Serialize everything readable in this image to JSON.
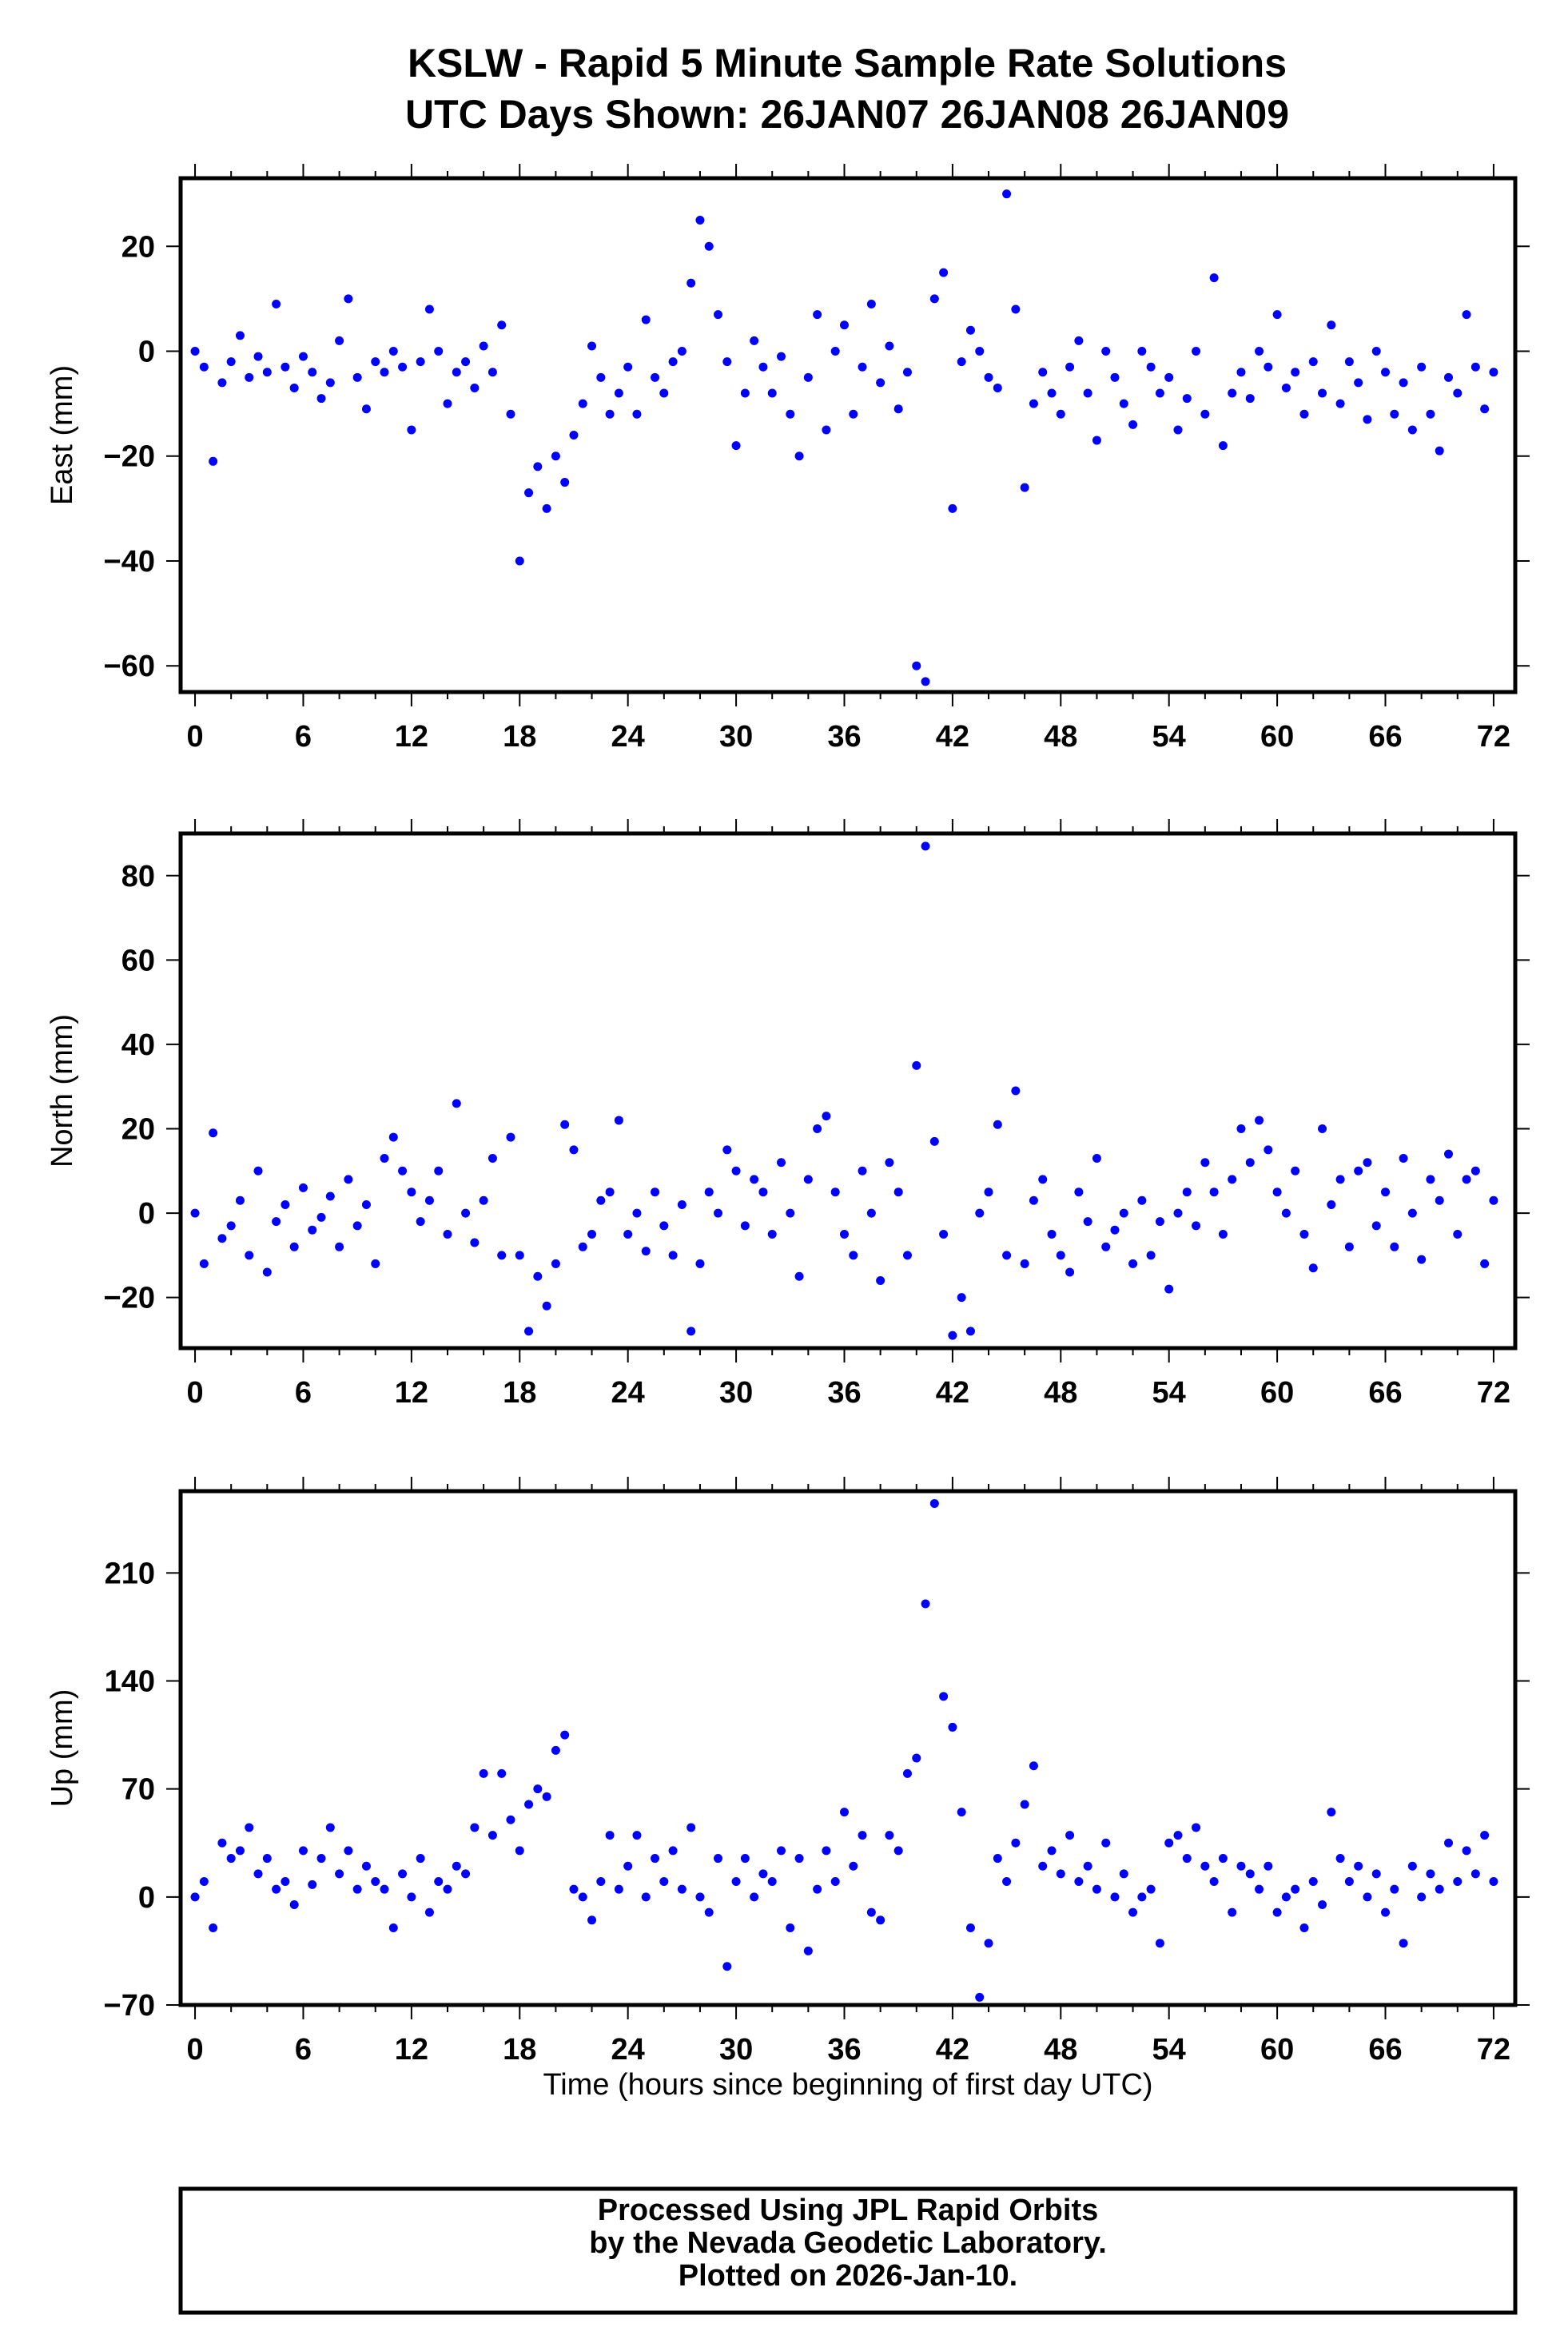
{
  "title": {
    "line1": "KSLW - Rapid 5 Minute Sample Rate Solutions",
    "line2": "UTC Days Shown:  26JAN07 26JAN08 26JAN09"
  },
  "footer": {
    "line1": "Processed Using JPL Rapid Orbits",
    "line2": "by the Nevada Geodetic Laboratory.",
    "line3": "Plotted on 2026-Jan-10."
  },
  "colors": {
    "points": "#0000ff",
    "axes": "#000000"
  },
  "chart_data": [
    {
      "type": "scatter",
      "name": "east",
      "ylabel": "East (mm)",
      "xlabel": "",
      "xlim": [
        -0.8,
        73.2
      ],
      "ylim": [
        -65,
        33
      ],
      "xticks": [
        0,
        6,
        12,
        18,
        24,
        30,
        36,
        42,
        48,
        54,
        60,
        66,
        72
      ],
      "yticks": [
        -60,
        -40,
        -20,
        0,
        20
      ],
      "ytick_labels": [
        "−60",
        "−40",
        "−20",
        "0",
        "20"
      ],
      "x_start": 0,
      "x_step": 0.5,
      "values": [
        0,
        -3,
        -21,
        -6,
        -2,
        3,
        -5,
        -1,
        -4,
        9,
        -3,
        -7,
        -1,
        -4,
        -9,
        -6,
        2,
        10,
        -5,
        -11,
        -2,
        -4,
        0,
        -3,
        -15,
        -2,
        8,
        0,
        -10,
        -4,
        -2,
        -7,
        1,
        -4,
        5,
        -12,
        -40,
        -27,
        -22,
        -30,
        -20,
        -25,
        -16,
        -10,
        1,
        -5,
        -12,
        -8,
        -3,
        -12,
        6,
        -5,
        -8,
        -2,
        0,
        13,
        25,
        20,
        7,
        -2,
        -18,
        -8,
        2,
        -3,
        -8,
        -1,
        -12,
        -20,
        -5,
        7,
        -15,
        0,
        5,
        -12,
        -3,
        9,
        -6,
        1,
        -11,
        -4,
        -60,
        -63,
        10,
        15,
        -30,
        -2,
        4,
        0,
        -5,
        -7,
        30,
        8,
        -26,
        -10,
        -4,
        -8,
        -12,
        -3,
        2,
        -8,
        -17,
        0,
        -5,
        -10,
        -14,
        0,
        -3,
        -8,
        -5,
        -15,
        -9,
        0,
        -12,
        14,
        -18,
        -8,
        -4,
        -9,
        0,
        -3,
        7,
        -7,
        -4,
        -12,
        -2,
        -8,
        5,
        -10,
        -2,
        -6,
        -13,
        0,
        -4,
        -12,
        -6,
        -15,
        -3,
        -12,
        -19,
        -5,
        -8,
        7,
        -3,
        -11,
        -4
      ]
    },
    {
      "type": "scatter",
      "name": "north",
      "ylabel": "North (mm)",
      "xlabel": "",
      "xlim": [
        -0.8,
        73.2
      ],
      "ylim": [
        -32,
        90
      ],
      "xticks": [
        0,
        6,
        12,
        18,
        24,
        30,
        36,
        42,
        48,
        54,
        60,
        66,
        72
      ],
      "yticks": [
        -20,
        0,
        20,
        40,
        60,
        80
      ],
      "ytick_labels": [
        "−20",
        "0",
        "20",
        "40",
        "60",
        "80"
      ],
      "x_start": 0,
      "x_step": 0.5,
      "values": [
        0,
        -12,
        19,
        -6,
        -3,
        3,
        -10,
        10,
        -14,
        -2,
        2,
        -8,
        6,
        -4,
        -1,
        4,
        -8,
        8,
        -3,
        2,
        -12,
        13,
        18,
        10,
        5,
        -2,
        3,
        10,
        -5,
        26,
        0,
        -7,
        3,
        13,
        -10,
        18,
        -10,
        -28,
        -15,
        -22,
        -12,
        21,
        15,
        -8,
        -5,
        3,
        5,
        22,
        -5,
        0,
        -9,
        5,
        -3,
        -10,
        2,
        -28,
        -12,
        5,
        0,
        15,
        10,
        -3,
        8,
        5,
        -5,
        12,
        0,
        -15,
        8,
        20,
        23,
        5,
        -5,
        -10,
        10,
        0,
        -16,
        12,
        5,
        -10,
        35,
        87,
        17,
        -5,
        -29,
        -20,
        -28,
        0,
        5,
        21,
        -10,
        29,
        -12,
        3,
        8,
        -5,
        -10,
        -14,
        5,
        -2,
        13,
        -8,
        -4,
        0,
        -12,
        3,
        -10,
        -2,
        -18,
        0,
        5,
        -3,
        12,
        5,
        -5,
        8,
        20,
        12,
        22,
        15,
        5,
        0,
        10,
        -5,
        -13,
        20,
        2,
        8,
        -8,
        10,
        12,
        -3,
        5,
        -8,
        13,
        0,
        -11,
        8,
        3,
        14,
        -5,
        8,
        10,
        -12,
        3
      ]
    },
    {
      "type": "scatter",
      "name": "up",
      "ylabel": "Up (mm)",
      "xlabel": "Time (hours since beginning of first day UTC)",
      "xlim": [
        -0.8,
        73.2
      ],
      "ylim": [
        -70,
        263
      ],
      "xticks": [
        0,
        6,
        12,
        18,
        24,
        30,
        36,
        42,
        48,
        54,
        60,
        66,
        72
      ],
      "yticks": [
        -70,
        0,
        70,
        140,
        210
      ],
      "ytick_labels": [
        "−70",
        "0",
        "70",
        "140",
        "210"
      ],
      "x_start": 0,
      "x_step": 0.5,
      "values": [
        0,
        10,
        -20,
        35,
        25,
        30,
        45,
        15,
        25,
        5,
        10,
        -5,
        30,
        8,
        25,
        45,
        15,
        30,
        5,
        20,
        10,
        5,
        -20,
        15,
        0,
        25,
        -10,
        10,
        5,
        20,
        15,
        45,
        80,
        40,
        80,
        50,
        30,
        60,
        70,
        65,
        95,
        105,
        5,
        0,
        -15,
        10,
        40,
        5,
        20,
        40,
        0,
        25,
        10,
        30,
        5,
        45,
        0,
        -10,
        25,
        -45,
        10,
        25,
        0,
        15,
        10,
        30,
        -20,
        25,
        -35,
        5,
        30,
        10,
        55,
        20,
        40,
        -10,
        -15,
        40,
        30,
        80,
        90,
        190,
        255,
        130,
        110,
        55,
        -20,
        -65,
        -30,
        25,
        10,
        35,
        60,
        85,
        20,
        30,
        15,
        40,
        10,
        20,
        5,
        35,
        0,
        15,
        -10,
        0,
        5,
        -30,
        35,
        40,
        25,
        45,
        20,
        10,
        25,
        -10,
        20,
        15,
        5,
        20,
        -10,
        0,
        5,
        -20,
        10,
        -5,
        55,
        25,
        10,
        20,
        0,
        15,
        -10,
        5,
        -30,
        20,
        0,
        15,
        5,
        35,
        10,
        30,
        15,
        40,
        10
      ]
    }
  ]
}
